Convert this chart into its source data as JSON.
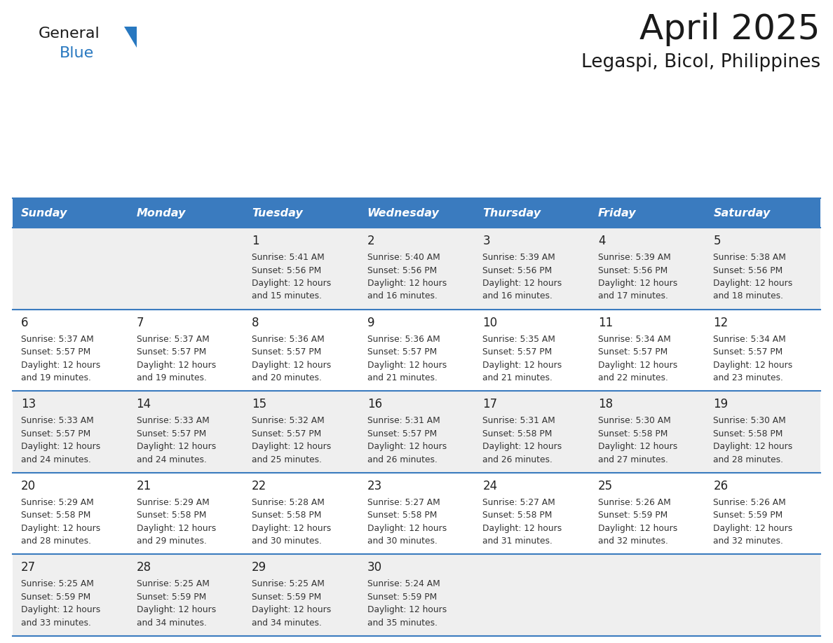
{
  "title": "April 2025",
  "subtitle": "Legaspi, Bicol, Philippines",
  "header_bg": "#3a7bbf",
  "header_text": "#ffffff",
  "cell_bg_gray": "#efefef",
  "cell_bg_white": "#ffffff",
  "border_color": "#3a7bbf",
  "text_color": "#333333",
  "days_of_week": [
    "Sunday",
    "Monday",
    "Tuesday",
    "Wednesday",
    "Thursday",
    "Friday",
    "Saturday"
  ],
  "weeks": [
    [
      {
        "day": "",
        "sunrise": "",
        "sunset": "",
        "daylight": ""
      },
      {
        "day": "",
        "sunrise": "",
        "sunset": "",
        "daylight": ""
      },
      {
        "day": "1",
        "sunrise": "Sunrise: 5:41 AM",
        "sunset": "Sunset: 5:56 PM",
        "daylight": "Daylight: 12 hours\nand 15 minutes."
      },
      {
        "day": "2",
        "sunrise": "Sunrise: 5:40 AM",
        "sunset": "Sunset: 5:56 PM",
        "daylight": "Daylight: 12 hours\nand 16 minutes."
      },
      {
        "day": "3",
        "sunrise": "Sunrise: 5:39 AM",
        "sunset": "Sunset: 5:56 PM",
        "daylight": "Daylight: 12 hours\nand 16 minutes."
      },
      {
        "day": "4",
        "sunrise": "Sunrise: 5:39 AM",
        "sunset": "Sunset: 5:56 PM",
        "daylight": "Daylight: 12 hours\nand 17 minutes."
      },
      {
        "day": "5",
        "sunrise": "Sunrise: 5:38 AM",
        "sunset": "Sunset: 5:56 PM",
        "daylight": "Daylight: 12 hours\nand 18 minutes."
      }
    ],
    [
      {
        "day": "6",
        "sunrise": "Sunrise: 5:37 AM",
        "sunset": "Sunset: 5:57 PM",
        "daylight": "Daylight: 12 hours\nand 19 minutes."
      },
      {
        "day": "7",
        "sunrise": "Sunrise: 5:37 AM",
        "sunset": "Sunset: 5:57 PM",
        "daylight": "Daylight: 12 hours\nand 19 minutes."
      },
      {
        "day": "8",
        "sunrise": "Sunrise: 5:36 AM",
        "sunset": "Sunset: 5:57 PM",
        "daylight": "Daylight: 12 hours\nand 20 minutes."
      },
      {
        "day": "9",
        "sunrise": "Sunrise: 5:36 AM",
        "sunset": "Sunset: 5:57 PM",
        "daylight": "Daylight: 12 hours\nand 21 minutes."
      },
      {
        "day": "10",
        "sunrise": "Sunrise: 5:35 AM",
        "sunset": "Sunset: 5:57 PM",
        "daylight": "Daylight: 12 hours\nand 21 minutes."
      },
      {
        "day": "11",
        "sunrise": "Sunrise: 5:34 AM",
        "sunset": "Sunset: 5:57 PM",
        "daylight": "Daylight: 12 hours\nand 22 minutes."
      },
      {
        "day": "12",
        "sunrise": "Sunrise: 5:34 AM",
        "sunset": "Sunset: 5:57 PM",
        "daylight": "Daylight: 12 hours\nand 23 minutes."
      }
    ],
    [
      {
        "day": "13",
        "sunrise": "Sunrise: 5:33 AM",
        "sunset": "Sunset: 5:57 PM",
        "daylight": "Daylight: 12 hours\nand 24 minutes."
      },
      {
        "day": "14",
        "sunrise": "Sunrise: 5:33 AM",
        "sunset": "Sunset: 5:57 PM",
        "daylight": "Daylight: 12 hours\nand 24 minutes."
      },
      {
        "day": "15",
        "sunrise": "Sunrise: 5:32 AM",
        "sunset": "Sunset: 5:57 PM",
        "daylight": "Daylight: 12 hours\nand 25 minutes."
      },
      {
        "day": "16",
        "sunrise": "Sunrise: 5:31 AM",
        "sunset": "Sunset: 5:57 PM",
        "daylight": "Daylight: 12 hours\nand 26 minutes."
      },
      {
        "day": "17",
        "sunrise": "Sunrise: 5:31 AM",
        "sunset": "Sunset: 5:58 PM",
        "daylight": "Daylight: 12 hours\nand 26 minutes."
      },
      {
        "day": "18",
        "sunrise": "Sunrise: 5:30 AM",
        "sunset": "Sunset: 5:58 PM",
        "daylight": "Daylight: 12 hours\nand 27 minutes."
      },
      {
        "day": "19",
        "sunrise": "Sunrise: 5:30 AM",
        "sunset": "Sunset: 5:58 PM",
        "daylight": "Daylight: 12 hours\nand 28 minutes."
      }
    ],
    [
      {
        "day": "20",
        "sunrise": "Sunrise: 5:29 AM",
        "sunset": "Sunset: 5:58 PM",
        "daylight": "Daylight: 12 hours\nand 28 minutes."
      },
      {
        "day": "21",
        "sunrise": "Sunrise: 5:29 AM",
        "sunset": "Sunset: 5:58 PM",
        "daylight": "Daylight: 12 hours\nand 29 minutes."
      },
      {
        "day": "22",
        "sunrise": "Sunrise: 5:28 AM",
        "sunset": "Sunset: 5:58 PM",
        "daylight": "Daylight: 12 hours\nand 30 minutes."
      },
      {
        "day": "23",
        "sunrise": "Sunrise: 5:27 AM",
        "sunset": "Sunset: 5:58 PM",
        "daylight": "Daylight: 12 hours\nand 30 minutes."
      },
      {
        "day": "24",
        "sunrise": "Sunrise: 5:27 AM",
        "sunset": "Sunset: 5:58 PM",
        "daylight": "Daylight: 12 hours\nand 31 minutes."
      },
      {
        "day": "25",
        "sunrise": "Sunrise: 5:26 AM",
        "sunset": "Sunset: 5:59 PM",
        "daylight": "Daylight: 12 hours\nand 32 minutes."
      },
      {
        "day": "26",
        "sunrise": "Sunrise: 5:26 AM",
        "sunset": "Sunset: 5:59 PM",
        "daylight": "Daylight: 12 hours\nand 32 minutes."
      }
    ],
    [
      {
        "day": "27",
        "sunrise": "Sunrise: 5:25 AM",
        "sunset": "Sunset: 5:59 PM",
        "daylight": "Daylight: 12 hours\nand 33 minutes."
      },
      {
        "day": "28",
        "sunrise": "Sunrise: 5:25 AM",
        "sunset": "Sunset: 5:59 PM",
        "daylight": "Daylight: 12 hours\nand 34 minutes."
      },
      {
        "day": "29",
        "sunrise": "Sunrise: 5:25 AM",
        "sunset": "Sunset: 5:59 PM",
        "daylight": "Daylight: 12 hours\nand 34 minutes."
      },
      {
        "day": "30",
        "sunrise": "Sunrise: 5:24 AM",
        "sunset": "Sunset: 5:59 PM",
        "daylight": "Daylight: 12 hours\nand 35 minutes."
      },
      {
        "day": "",
        "sunrise": "",
        "sunset": "",
        "daylight": ""
      },
      {
        "day": "",
        "sunrise": "",
        "sunset": "",
        "daylight": ""
      },
      {
        "day": "",
        "sunrise": "",
        "sunset": "",
        "daylight": ""
      }
    ]
  ],
  "logo_general_color": "#1a1a1a",
  "logo_blue_color": "#2878c0",
  "logo_triangle_color": "#2878c0"
}
